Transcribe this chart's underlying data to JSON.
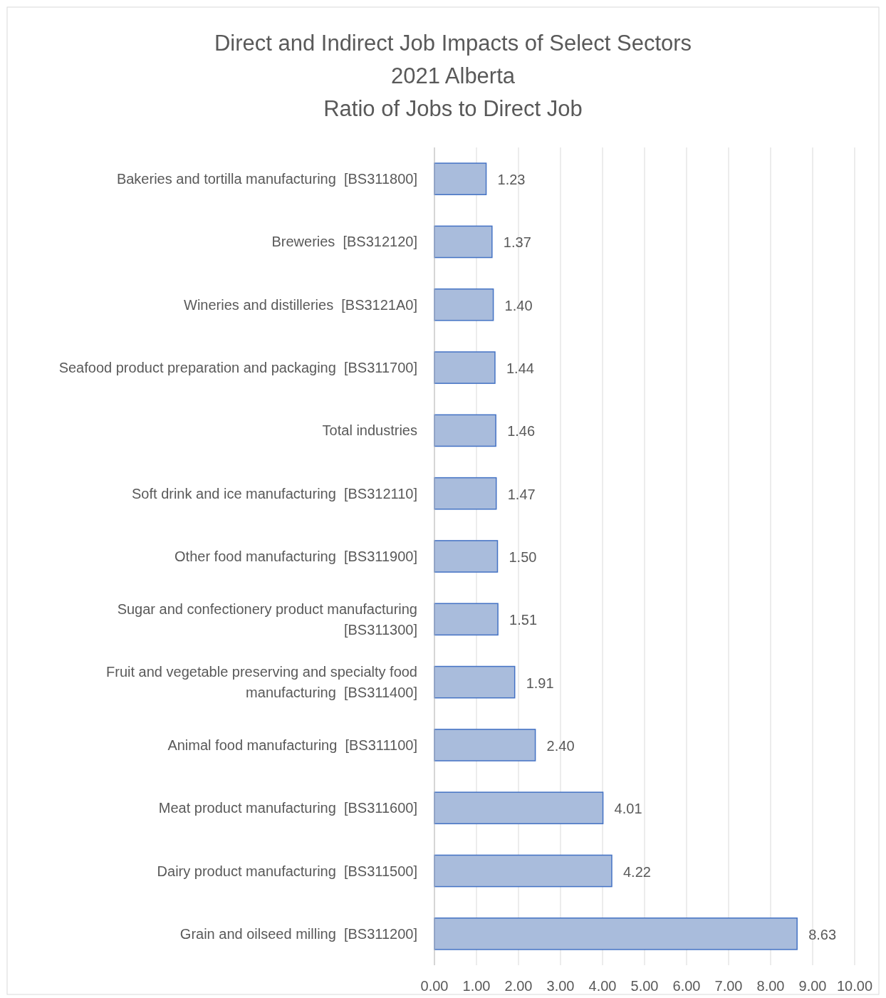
{
  "chart_data": {
    "type": "bar",
    "orientation": "horizontal",
    "title": "Direct and Indirect Job Impacts of Select Sectors\n2021 Alberta\nRatio of Jobs to Direct Job",
    "categories": [
      "Bakeries and tortilla manufacturing  [BS311800]",
      "Breweries  [BS312120]",
      "Wineries and distilleries  [BS3121A0]",
      "Seafood product preparation and packaging  [BS311700]",
      "Total industries",
      "Soft drink and ice manufacturing  [BS312110]",
      "Other food manufacturing  [BS311900]",
      "Sugar and confectionery product manufacturing  [BS311300]",
      "Fruit and vegetable preserving and specialty food manufacturing  [BS311400]",
      "Animal food manufacturing  [BS311100]",
      "Meat product manufacturing  [BS311600]",
      "Dairy product manufacturing  [BS311500]",
      "Grain and oilseed milling  [BS311200]"
    ],
    "values": [
      1.23,
      1.37,
      1.4,
      1.44,
      1.46,
      1.47,
      1.5,
      1.51,
      1.91,
      2.4,
      4.01,
      4.22,
      8.63
    ],
    "value_labels": [
      "1.23",
      "1.37",
      "1.40",
      "1.44",
      "1.46",
      "1.47",
      "1.50",
      "1.51",
      "1.91",
      "2.40",
      "4.01",
      "4.22",
      "8.63"
    ],
    "color": "#a9bcdc",
    "xlim": [
      0,
      10
    ],
    "xticks": [
      {
        "value": 0,
        "label": "0.00"
      },
      {
        "value": 1,
        "label": "1.00"
      },
      {
        "value": 2,
        "label": "2.00"
      },
      {
        "value": 3,
        "label": "3.00"
      },
      {
        "value": 4,
        "label": "4.00"
      },
      {
        "value": 5,
        "label": "5.00"
      },
      {
        "value": 6,
        "label": "6.00"
      },
      {
        "value": 7,
        "label": "7.00"
      },
      {
        "value": 8,
        "label": "8.00"
      },
      {
        "value": 9,
        "label": "9.00"
      },
      {
        "value": 10,
        "label": "10.00"
      }
    ],
    "grid": "x"
  }
}
